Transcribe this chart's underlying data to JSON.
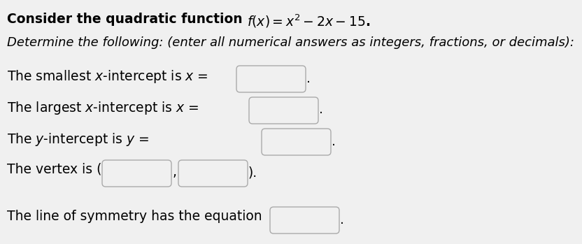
{
  "background_color": "#f0f0f0",
  "box_color": "#f0f0f0",
  "box_edge_color": "#aaaaaa",
  "text_color": "#000000",
  "font_size_title": 13.5,
  "font_size_body": 13.5,
  "title_text": "Consider the quadratic function",
  "title_math": "$f(x) = x^2 - 2x - 15$.",
  "subtitle": "Determine the following: (enter all numerical answers as integers, fractions, or decimals):",
  "line1": "The smallest $x$-intercept is $x$ =",
  "line2": "The largest $x$-intercept is $x$ =",
  "line3": "The $y$-intercept is $y$ =",
  "line4a": "The vertex is (",
  "line4b": ",",
  "line4c": ").",
  "line5": "The line of symmetry has the equation"
}
